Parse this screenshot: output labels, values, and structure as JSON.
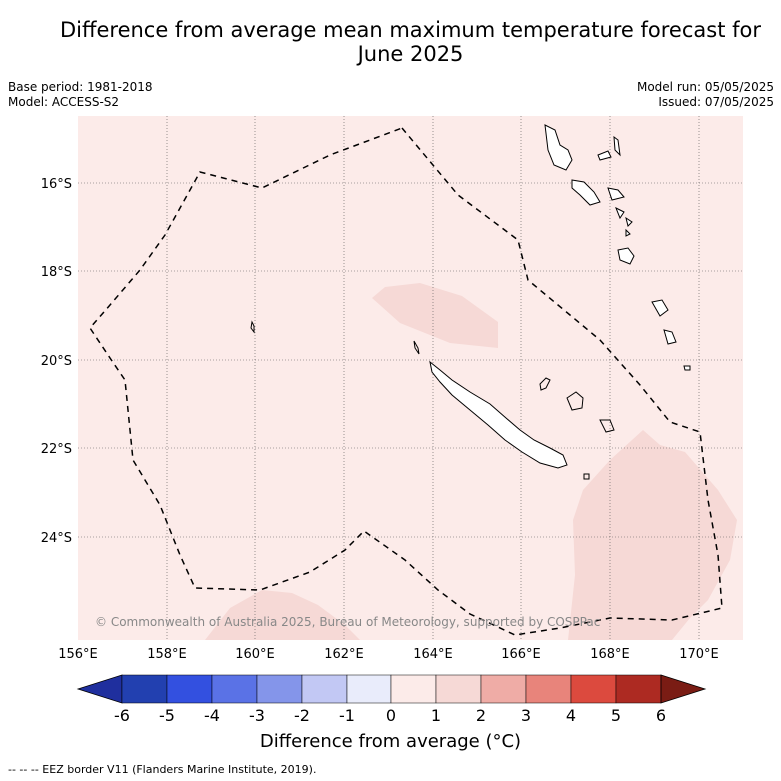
{
  "title_line1": "Difference from average mean maximum temperature forecast for",
  "title_line2": "June 2025",
  "meta_left": {
    "base_period": "Base period: 1981-2018",
    "model": "Model: ACCESS-S2"
  },
  "meta_right": {
    "model_run": "Model run: 05/05/2025",
    "issued": "Issued: 07/05/2025"
  },
  "y_ticks": [
    "16°S",
    "18°S",
    "20°S",
    "22°S",
    "24°S"
  ],
  "x_ticks": [
    "156°E",
    "158°E",
    "160°E",
    "162°E",
    "164°E",
    "166°E",
    "168°E",
    "170°E"
  ],
  "copyright": "© Commonwealth of Australia 2025, Bureau of Meteorology, supported by COSPPac",
  "colorbar": {
    "ticks": [
      "-6",
      "-5",
      "-4",
      "-3",
      "-2",
      "-1",
      "0",
      "1",
      "2",
      "3",
      "4",
      "5",
      "6"
    ],
    "colors": [
      "#1f2f9e",
      "#2240b0",
      "#3350e0",
      "#5a72e6",
      "#8495ea",
      "#c2c8f4",
      "#e9ecfb",
      "#fcebe9",
      "#f6d9d6",
      "#efaca6",
      "#e8847b",
      "#dc4a3e",
      "#ad2a22",
      "#7a1c14"
    ],
    "label": "Difference from average (°C)"
  },
  "map_colors": {
    "background": "#fcebe9",
    "warmer_patch": "#f6d9d6"
  },
  "legend_footer": "--  --  -- EEZ border V11 (Flanders Marine Institute, 2019)."
}
